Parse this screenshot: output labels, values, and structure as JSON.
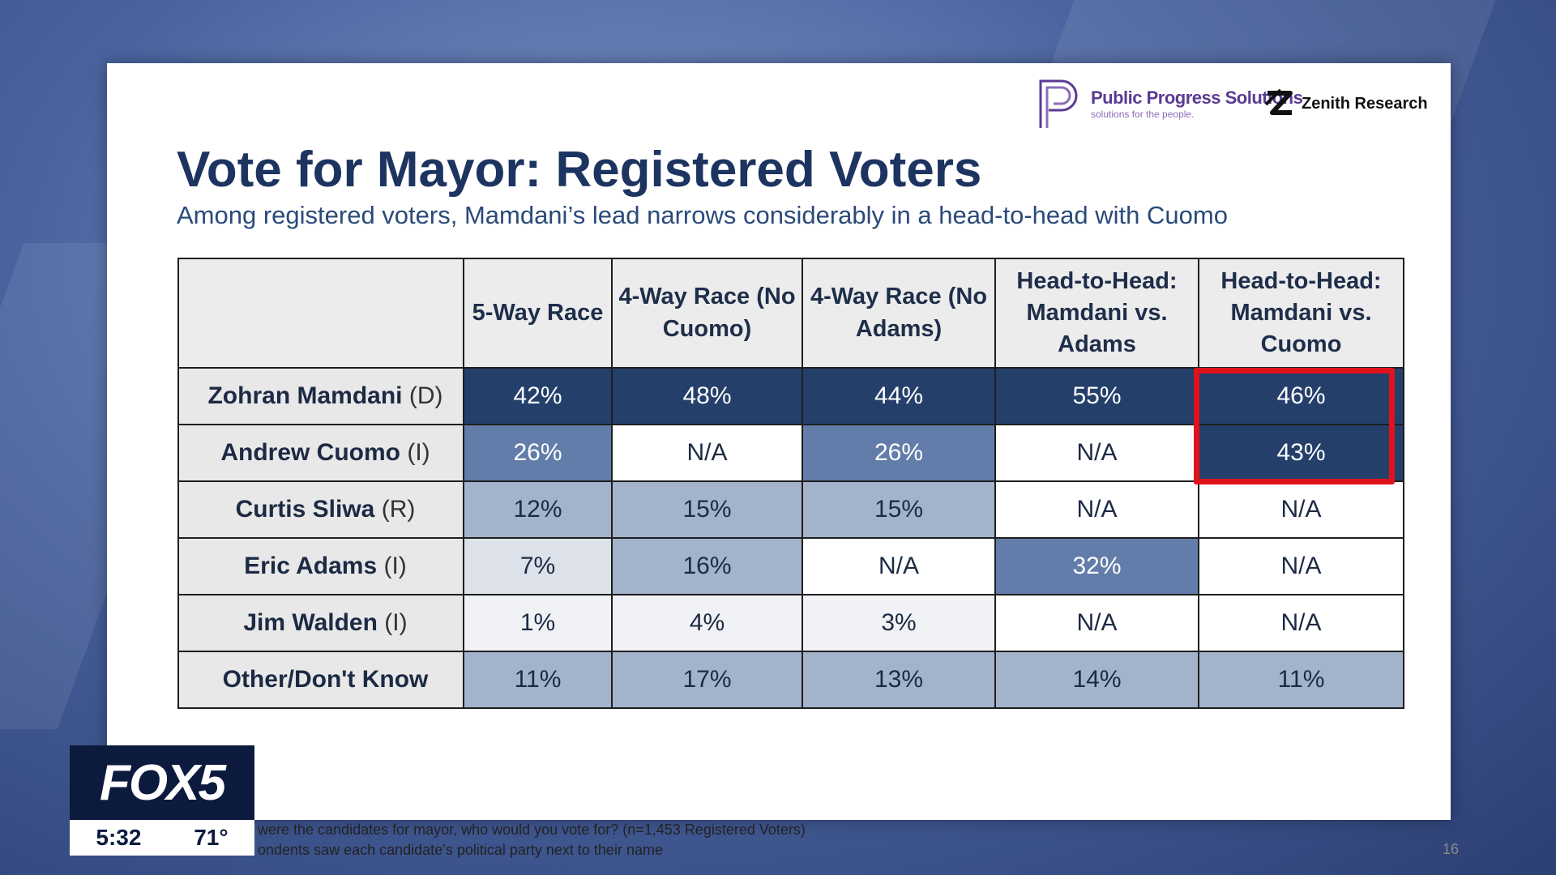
{
  "header": {
    "pps_name": "Public Progress Solutions",
    "pps_tagline": "solutions for the people.",
    "zr_name": "Zenith Research"
  },
  "title": "Vote for Mayor: Registered Voters",
  "subtitle": "Among registered voters, Mamdani’s lead narrows considerably in a head-to-head with Cuomo",
  "chart_data": {
    "type": "table",
    "columns": [
      "",
      "5-Way Race",
      "4-Way Race (No Cuomo)",
      "4-Way Race (No Adams)",
      "Head-to-Head: Mamdani vs. Adams",
      "Head-to-Head: Mamdani vs. Cuomo"
    ],
    "rows": [
      {
        "name": "Zohran Mamdani",
        "party": "(D)",
        "cells": [
          "42%",
          "48%",
          "44%",
          "55%",
          "46%"
        ]
      },
      {
        "name": "Andrew Cuomo",
        "party": "(I)",
        "cells": [
          "26%",
          "N/A",
          "26%",
          "N/A",
          "43%"
        ]
      },
      {
        "name": "Curtis Sliwa",
        "party": "(R)",
        "cells": [
          "12%",
          "15%",
          "15%",
          "N/A",
          "N/A"
        ]
      },
      {
        "name": "Eric Adams",
        "party": "(I)",
        "cells": [
          "7%",
          "16%",
          "N/A",
          "32%",
          "N/A"
        ]
      },
      {
        "name": "Jim Walden",
        "party": "(I)",
        "cells": [
          "1%",
          "4%",
          "3%",
          "N/A",
          "N/A"
        ]
      },
      {
        "name": "Other/Don't Know",
        "party": "",
        "cells": [
          "11%",
          "17%",
          "13%",
          "14%",
          "11%"
        ]
      }
    ],
    "highlight": "Head-to-Head: Mamdani vs. Cuomo — Zohran Mamdani and Andrew Cuomo rows",
    "colors": {
      "dark": "#253f6b",
      "mid": "#627da9",
      "light": "#a4b3cc",
      "pale": "#dde2ea",
      "faint": "#f0f2f5",
      "na": "#ffffff",
      "highlight_border": "#e0131c"
    }
  },
  "footnote": {
    "line1": "were the candidates for mayor, who would you vote for? (n=1,453 Registered Voters)",
    "line2": "ondents saw each candidate’s political party next to their name"
  },
  "page_number": "16",
  "broadcast": {
    "logo": "FOX5",
    "time": "5:32",
    "temperature": "71°"
  }
}
